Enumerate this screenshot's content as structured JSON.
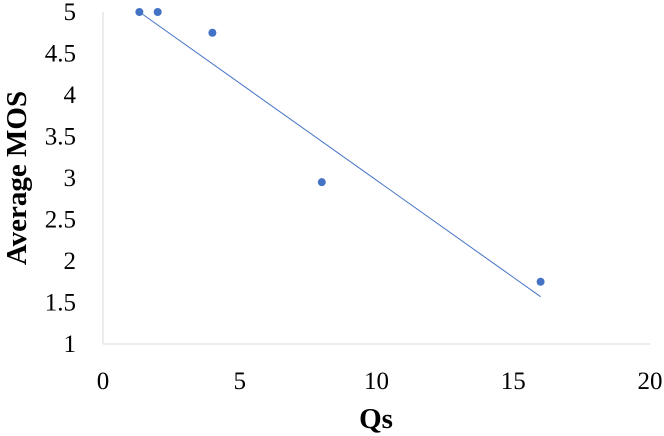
{
  "chart_data": {
    "type": "scatter",
    "title": "",
    "xlabel": "Qs",
    "ylabel": "Average MOS",
    "xlim": [
      0,
      20
    ],
    "ylim": [
      1,
      5
    ],
    "x_ticks": [
      "0",
      "5",
      "10",
      "15",
      "20"
    ],
    "y_ticks": [
      "1",
      "1.5",
      "2",
      "2.5",
      "3",
      "3.5",
      "4",
      "4.5",
      "5"
    ],
    "grid": false,
    "legend": "none",
    "series": [
      {
        "points": [
          {
            "x": 1.33,
            "y": 5.0
          },
          {
            "x": 2.0,
            "y": 5.0
          },
          {
            "x": 4.0,
            "y": 4.75
          },
          {
            "x": 8.0,
            "y": 2.95
          },
          {
            "x": 16.0,
            "y": 1.75
          }
        ],
        "color": "#4472C4"
      }
    ],
    "trendline": {
      "type": "linear",
      "x_range": [
        1.33,
        16.0
      ],
      "y_range": [
        5.0,
        1.57
      ],
      "color": "#4472C4"
    }
  }
}
